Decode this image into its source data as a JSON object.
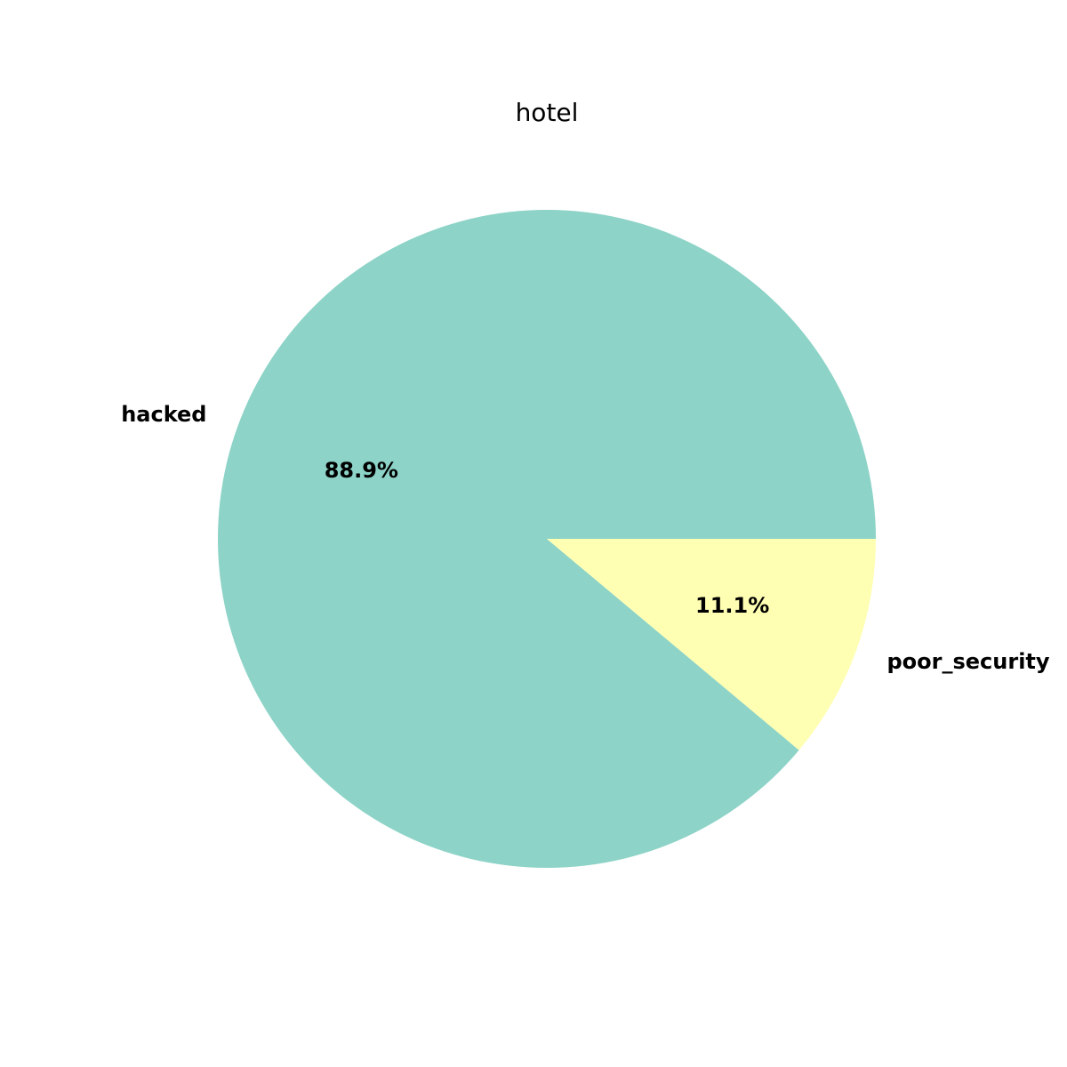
{
  "chart_data": {
    "type": "pie",
    "title": "hotel",
    "categories": [
      "hacked",
      "poor_security"
    ],
    "values": [
      88.9,
      11.1
    ],
    "pct_labels": [
      "88.9%",
      "11.1%"
    ],
    "colors": [
      "#8dd3c7",
      "#ffffb3"
    ],
    "start_angle_deg": 0,
    "direction": "counterclockwise"
  }
}
